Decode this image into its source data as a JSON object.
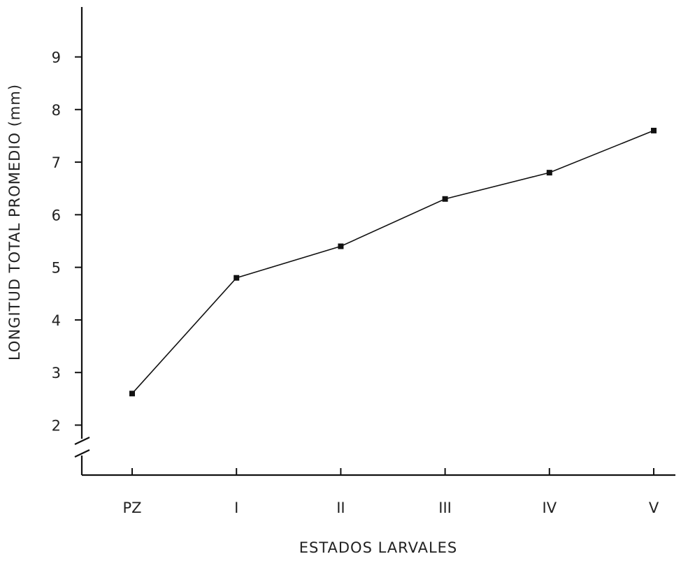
{
  "chart_data": {
    "type": "line",
    "title": "",
    "xlabel": "ESTADOS LARVALES",
    "ylabel": "LONGITUD TOTAL PROMEDIO (mm)",
    "categories": [
      "PZ",
      "I",
      "II",
      "III",
      "IV",
      "V"
    ],
    "series": [
      {
        "values": [
          2.6,
          4.8,
          5.4,
          6.3,
          6.8,
          7.6
        ]
      }
    ],
    "yticks": [
      "2",
      "3",
      "4",
      "5",
      "6",
      "7",
      "8",
      "9"
    ],
    "ylim": [
      1.05,
      9.95
    ],
    "y_axis_break": true,
    "grid": false,
    "legend": "none",
    "color": "#111111"
  }
}
